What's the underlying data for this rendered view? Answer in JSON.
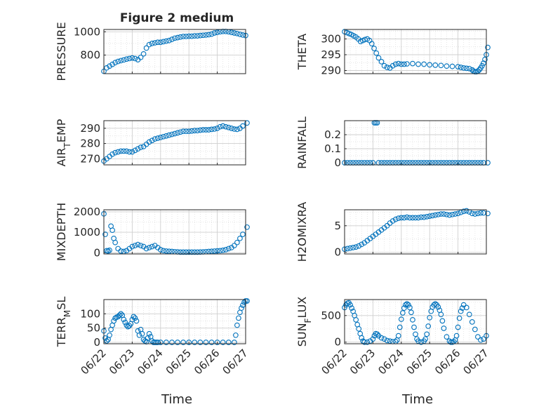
{
  "figure": {
    "title": "Figure 2 medium",
    "x_label": "Time",
    "x_ticks": [
      "06/22",
      "06/23",
      "06/24",
      "06/25",
      "06/26",
      "06/27"
    ],
    "marker_color": "#0072bd",
    "grid_color": "#dcdcdc"
  },
  "chart_data": [
    {
      "type": "scatter",
      "id": "pressure",
      "ylabel": "PRESSURE",
      "ylabel_sub": "",
      "ylabel_rest": "",
      "yticks": [
        800,
        1000
      ],
      "ylim": [
        640,
        1020
      ],
      "xlim": [
        0,
        5
      ],
      "minor_y": 100,
      "x": [
        0.0,
        0.1,
        0.2,
        0.3,
        0.4,
        0.5,
        0.6,
        0.7,
        0.8,
        0.9,
        1.0,
        1.1,
        1.2,
        1.3,
        1.4,
        1.5,
        1.6,
        1.7,
        1.8,
        1.9,
        2.0,
        2.1,
        2.2,
        2.3,
        2.4,
        2.5,
        2.6,
        2.7,
        2.8,
        2.9,
        3.0,
        3.1,
        3.2,
        3.3,
        3.4,
        3.5,
        3.6,
        3.7,
        3.8,
        3.9,
        4.0,
        4.1,
        4.2,
        4.3,
        4.4,
        4.5,
        4.6,
        4.7,
        4.8,
        4.9,
        5.0
      ],
      "y": [
        660,
        690,
        705,
        720,
        735,
        745,
        752,
        758,
        765,
        770,
        775,
        770,
        760,
        780,
        810,
        860,
        890,
        900,
        905,
        910,
        910,
        915,
        920,
        925,
        935,
        945,
        950,
        955,
        960,
        960,
        962,
        962,
        965,
        965,
        968,
        970,
        972,
        975,
        980,
        990,
        995,
        1000,
        1003,
        1003,
        1000,
        995,
        990,
        985,
        978,
        972,
        968
      ]
    },
    {
      "type": "scatter",
      "id": "theta",
      "ylabel": "THETA",
      "ylabel_sub": "",
      "ylabel_rest": "",
      "yticks": [
        290,
        295,
        300
      ],
      "ylim": [
        289,
        303
      ],
      "xlim": [
        0,
        5
      ],
      "minor_y": 2.5,
      "x": [
        0.0,
        0.08,
        0.16,
        0.24,
        0.32,
        0.4,
        0.48,
        0.56,
        0.64,
        0.72,
        0.8,
        0.88,
        0.96,
        1.04,
        1.12,
        1.2,
        1.3,
        1.4,
        1.5,
        1.6,
        1.7,
        1.8,
        1.9,
        2.0,
        2.1,
        2.2,
        2.4,
        2.6,
        2.8,
        3.0,
        3.2,
        3.4,
        3.6,
        3.8,
        4.0,
        4.1,
        4.2,
        4.3,
        4.4,
        4.5,
        4.55,
        4.6,
        4.65,
        4.7,
        4.75,
        4.8,
        4.85,
        4.9,
        4.95,
        5.0,
        5.05
      ],
      "y": [
        302.3,
        302.0,
        301.7,
        301.4,
        301.0,
        300.6,
        300.0,
        299.2,
        299.5,
        299.8,
        300.0,
        299.5,
        298.5,
        297.0,
        295.5,
        294.0,
        292.8,
        291.5,
        291.0,
        290.8,
        291.5,
        292.0,
        292.2,
        292.0,
        292.0,
        292.1,
        292.2,
        292.0,
        292.0,
        291.8,
        291.7,
        291.6,
        291.4,
        291.3,
        291.2,
        291.0,
        290.8,
        290.7,
        290.6,
        290.2,
        289.8,
        289.6,
        289.6,
        289.8,
        290.2,
        290.8,
        291.5,
        292.3,
        293.5,
        295.0,
        297.3
      ]
    },
    {
      "type": "scatter",
      "id": "airtemp",
      "ylabel": "AIR",
      "ylabel_sub": "T",
      "ylabel_rest": "EMP",
      "yticks": [
        270,
        280,
        290
      ],
      "ylim": [
        266,
        295
      ],
      "xlim": [
        0,
        5
      ],
      "minor_y": 5,
      "x": [
        0.0,
        0.1,
        0.2,
        0.3,
        0.4,
        0.5,
        0.6,
        0.7,
        0.8,
        0.9,
        1.0,
        1.1,
        1.2,
        1.3,
        1.4,
        1.5,
        1.6,
        1.7,
        1.8,
        1.9,
        2.0,
        2.1,
        2.2,
        2.3,
        2.4,
        2.5,
        2.6,
        2.7,
        2.8,
        2.9,
        3.0,
        3.1,
        3.2,
        3.3,
        3.4,
        3.5,
        3.6,
        3.7,
        3.8,
        3.9,
        4.0,
        4.1,
        4.2,
        4.3,
        4.4,
        4.5,
        4.6,
        4.7,
        4.8,
        4.9,
        5.05
      ],
      "y": [
        268.5,
        270,
        271.5,
        273,
        274,
        274.5,
        275,
        275,
        275,
        274.5,
        274.5,
        275.5,
        276.5,
        277.5,
        278,
        279.5,
        281,
        282,
        283,
        283.5,
        284,
        284.5,
        285,
        285.5,
        286,
        286.5,
        287,
        287.5,
        288,
        288,
        288,
        288.2,
        288.5,
        288.5,
        288.8,
        289,
        289,
        289,
        289.3,
        289.5,
        290,
        291,
        291.5,
        291,
        290.5,
        290,
        289.5,
        289.3,
        290,
        291.5,
        293.5
      ]
    },
    {
      "type": "scatter",
      "id": "rainfall",
      "ylabel": "RAINFALL",
      "ylabel_sub": "",
      "ylabel_rest": "",
      "yticks": [
        0,
        0.1,
        0.2
      ],
      "ylim": [
        -0.015,
        0.3
      ],
      "xlim": [
        0,
        5
      ],
      "minor_y": 0.05,
      "x": [
        0.0,
        0.1,
        0.2,
        0.3,
        0.4,
        0.5,
        0.6,
        0.7,
        0.8,
        0.9,
        1.0,
        1.05,
        1.1,
        1.15,
        1.2,
        1.3,
        1.4,
        1.5,
        1.6,
        1.7,
        1.8,
        1.9,
        2.0,
        2.1,
        2.2,
        2.3,
        2.4,
        2.5,
        2.6,
        2.7,
        2.8,
        2.9,
        3.0,
        3.1,
        3.2,
        3.3,
        3.4,
        3.5,
        3.6,
        3.7,
        3.8,
        3.9,
        4.0,
        4.1,
        4.2,
        4.3,
        4.4,
        4.5,
        4.6,
        4.7,
        4.8,
        4.9,
        5.05
      ],
      "y": [
        0,
        0,
        0,
        0,
        0,
        0,
        0,
        0,
        0,
        0,
        0,
        0.285,
        0.285,
        0.285,
        0,
        0,
        0,
        0,
        0,
        0,
        0,
        0,
        0,
        0,
        0,
        0,
        0,
        0,
        0,
        0,
        0,
        0,
        0,
        0,
        0,
        0,
        0,
        0,
        0,
        0,
        0,
        0,
        0,
        0,
        0,
        0,
        0,
        0,
        0,
        0,
        0,
        0,
        0
      ]
    },
    {
      "type": "scatter",
      "id": "mixdepth",
      "ylabel": "MIXDEPTH",
      "ylabel_sub": "",
      "ylabel_rest": "",
      "yticks": [
        0,
        1000,
        2000
      ],
      "ylim": [
        -60,
        2100
      ],
      "xlim": [
        0,
        5
      ],
      "minor_y": 500,
      "x": [
        0.0,
        0.05,
        0.1,
        0.15,
        0.2,
        0.25,
        0.3,
        0.35,
        0.4,
        0.5,
        0.6,
        0.7,
        0.8,
        0.9,
        1.0,
        1.1,
        1.2,
        1.3,
        1.4,
        1.5,
        1.6,
        1.7,
        1.8,
        1.9,
        2.0,
        2.1,
        2.2,
        2.3,
        2.4,
        2.5,
        2.6,
        2.7,
        2.8,
        2.9,
        3.0,
        3.1,
        3.2,
        3.3,
        3.4,
        3.5,
        3.6,
        3.7,
        3.8,
        3.9,
        4.0,
        4.1,
        4.2,
        4.3,
        4.4,
        4.5,
        4.6,
        4.7,
        4.8,
        4.9,
        5.05
      ],
      "y": [
        1900,
        900,
        100,
        80,
        120,
        1300,
        1100,
        700,
        500,
        200,
        80,
        60,
        100,
        200,
        300,
        350,
        400,
        350,
        300,
        200,
        250,
        300,
        350,
        250,
        150,
        100,
        80,
        70,
        60,
        50,
        40,
        30,
        30,
        30,
        30,
        30,
        30,
        30,
        35,
        40,
        50,
        60,
        70,
        80,
        90,
        100,
        120,
        150,
        200,
        250,
        350,
        500,
        700,
        900,
        1250
      ]
    },
    {
      "type": "scatter",
      "id": "h2omixra",
      "ylabel": "H2OMIXRA",
      "ylabel_sub": "",
      "ylabel_rest": "",
      "yticks": [
        0,
        5
      ],
      "ylim": [
        -0.3,
        8
      ],
      "xlim": [
        0,
        5
      ],
      "minor_y": 2.5,
      "x": [
        0.0,
        0.1,
        0.2,
        0.3,
        0.4,
        0.5,
        0.6,
        0.7,
        0.8,
        0.9,
        1.0,
        1.1,
        1.2,
        1.3,
        1.4,
        1.5,
        1.6,
        1.7,
        1.8,
        1.9,
        2.0,
        2.1,
        2.2,
        2.3,
        2.4,
        2.5,
        2.6,
        2.7,
        2.8,
        2.9,
        3.0,
        3.1,
        3.2,
        3.3,
        3.4,
        3.5,
        3.6,
        3.7,
        3.8,
        3.9,
        4.0,
        4.1,
        4.2,
        4.3,
        4.4,
        4.5,
        4.6,
        4.7,
        4.8,
        4.9,
        5.05
      ],
      "y": [
        0.6,
        0.7,
        0.8,
        0.9,
        1.0,
        1.2,
        1.5,
        1.8,
        2.2,
        2.6,
        3.0,
        3.4,
        3.8,
        4.2,
        4.6,
        5.0,
        5.5,
        5.9,
        6.2,
        6.4,
        6.5,
        6.5,
        6.6,
        6.5,
        6.5,
        6.5,
        6.5,
        6.6,
        6.6,
        6.7,
        6.8,
        6.9,
        7.0,
        7.1,
        7.2,
        7.2,
        7.1,
        7.0,
        7.1,
        7.2,
        7.3,
        7.5,
        7.7,
        7.8,
        7.6,
        7.3,
        7.2,
        7.3,
        7.4,
        7.4,
        7.3
      ]
    },
    {
      "type": "scatter",
      "id": "terrmsl",
      "ylabel": "TERR",
      "ylabel_sub": "M",
      "ylabel_rest": "SL",
      "yticks": [
        0,
        50,
        100
      ],
      "ylim": [
        -5,
        150
      ],
      "xlim": [
        0,
        5
      ],
      "minor_y": 25,
      "x": [
        0.0,
        0.05,
        0.1,
        0.15,
        0.2,
        0.25,
        0.3,
        0.35,
        0.4,
        0.45,
        0.5,
        0.55,
        0.6,
        0.65,
        0.7,
        0.75,
        0.8,
        0.85,
        0.9,
        0.95,
        1.0,
        1.05,
        1.1,
        1.15,
        1.2,
        1.25,
        1.3,
        1.35,
        1.4,
        1.45,
        1.5,
        1.55,
        1.6,
        1.65,
        1.7,
        1.75,
        1.8,
        1.85,
        1.9,
        2.0,
        2.2,
        2.4,
        2.6,
        2.8,
        3.0,
        3.2,
        3.4,
        3.6,
        3.8,
        4.0,
        4.2,
        4.4,
        4.6,
        4.65,
        4.7,
        4.75,
        4.8,
        4.85,
        4.9,
        4.95,
        5.0,
        5.05
      ],
      "y": [
        40,
        15,
        5,
        10,
        25,
        45,
        60,
        75,
        85,
        88,
        90,
        95,
        100,
        95,
        80,
        70,
        60,
        55,
        58,
        65,
        80,
        90,
        85,
        75,
        40,
        25,
        45,
        30,
        10,
        5,
        2,
        15,
        30,
        20,
        5,
        0,
        0,
        0,
        0,
        0,
        0,
        0,
        0,
        0,
        0,
        0,
        0,
        0,
        0,
        0,
        0,
        0,
        0,
        25,
        60,
        85,
        105,
        120,
        130,
        140,
        145,
        145
      ]
    },
    {
      "type": "scatter",
      "id": "sunflux",
      "ylabel": "SUN",
      "ylabel_sub": "F",
      "ylabel_rest": "LUX",
      "yticks": [
        0,
        500
      ],
      "ylim": [
        -30,
        800
      ],
      "xlim": [
        0,
        5
      ],
      "minor_y": 250,
      "x": [
        0.0,
        0.05,
        0.1,
        0.15,
        0.2,
        0.25,
        0.3,
        0.35,
        0.4,
        0.45,
        0.5,
        0.55,
        0.6,
        0.65,
        0.7,
        0.8,
        0.9,
        1.0,
        1.05,
        1.1,
        1.15,
        1.2,
        1.3,
        1.4,
        1.5,
        1.6,
        1.7,
        1.8,
        1.85,
        1.9,
        1.95,
        2.0,
        2.05,
        2.1,
        2.15,
        2.2,
        2.25,
        2.3,
        2.35,
        2.4,
        2.45,
        2.5,
        2.55,
        2.6,
        2.7,
        2.8,
        2.85,
        2.9,
        2.95,
        3.0,
        3.05,
        3.1,
        3.15,
        3.2,
        3.25,
        3.3,
        3.35,
        3.4,
        3.45,
        3.5,
        3.6,
        3.7,
        3.75,
        3.8,
        3.85,
        3.9,
        3.95,
        4.0,
        4.05,
        4.1,
        4.15,
        4.2,
        4.3,
        4.4,
        4.5,
        4.6,
        4.7,
        4.8,
        4.9,
        5.0
      ],
      "y": [
        650,
        700,
        730,
        740,
        700,
        640,
        580,
        500,
        420,
        330,
        250,
        160,
        80,
        20,
        0,
        0,
        20,
        60,
        120,
        160,
        150,
        120,
        80,
        60,
        30,
        20,
        10,
        10,
        40,
        120,
        280,
        430,
        550,
        640,
        700,
        720,
        700,
        650,
        560,
        420,
        280,
        150,
        60,
        20,
        0,
        20,
        60,
        150,
        300,
        460,
        580,
        660,
        700,
        720,
        700,
        660,
        600,
        520,
        400,
        260,
        100,
        20,
        0,
        0,
        10,
        40,
        120,
        280,
        450,
        580,
        640,
        700,
        650,
        520,
        380,
        240,
        100,
        40,
        60,
        120
      ]
    }
  ]
}
